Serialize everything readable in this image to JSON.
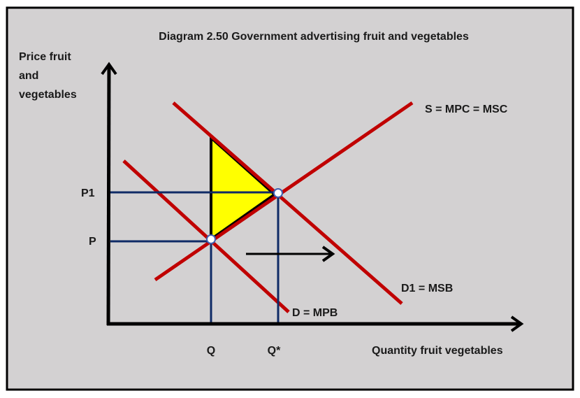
{
  "title": "Diagram 2.50 Government advertising fruit and vegetables",
  "y_axis_label": [
    "Price fruit",
    "and",
    "vegetables"
  ],
  "x_axis_label": "Quantity fruit vegetables",
  "price_labels": {
    "p1": "P1",
    "p": "P"
  },
  "quantity_labels": {
    "q": "Q",
    "q_star": "Q*"
  },
  "curve_labels": {
    "supply": "S = MPC = MSC",
    "demand_social": "D1 = MSB",
    "demand_private": "D = MPB"
  },
  "colors": {
    "background": "#d3d1d2",
    "curves": "#c00000",
    "guides": "#0f2a66",
    "welfare_gain": "#ffff00",
    "axes": "#000000"
  }
}
